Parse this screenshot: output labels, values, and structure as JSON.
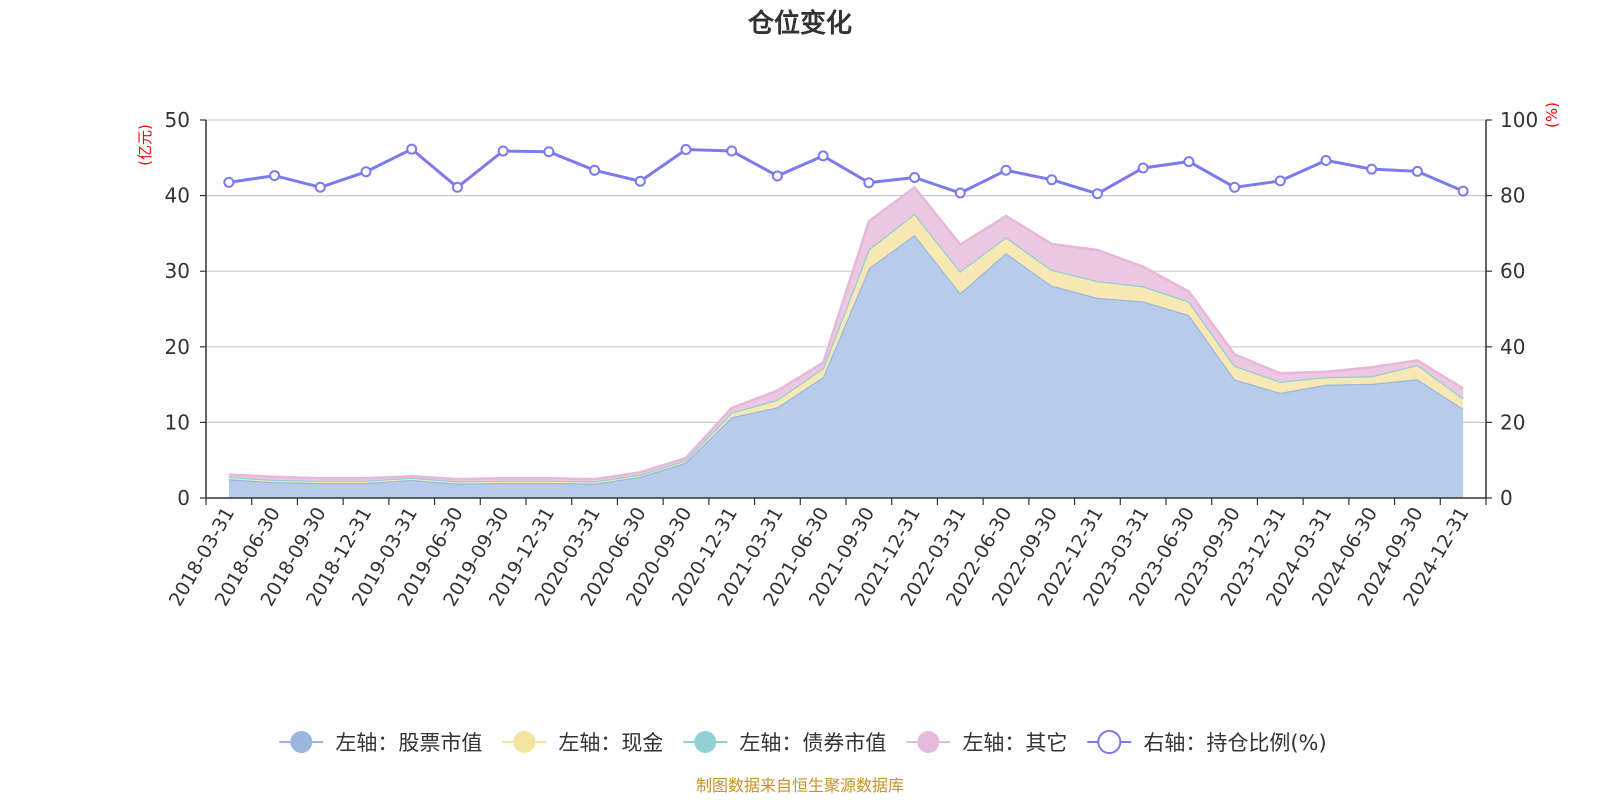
{
  "chart_data": {
    "type": "area",
    "title": "仓位变化",
    "left_unit": "(亿元)",
    "right_unit": "(%)",
    "left_ylim": [
      0,
      50
    ],
    "left_ticks": [
      "0",
      "10",
      "20",
      "30",
      "40",
      "50"
    ],
    "right_ylim": [
      0,
      100
    ],
    "right_ticks": [
      "0",
      "20",
      "40",
      "60",
      "80",
      "100"
    ],
    "grid": true,
    "legend_position": "bottom-center",
    "categories": [
      "2018-03-31",
      "2018-06-30",
      "2018-09-30",
      "2018-12-31",
      "2019-03-31",
      "2019-06-30",
      "2019-09-30",
      "2019-12-31",
      "2020-03-31",
      "2020-06-30",
      "2020-09-30",
      "2020-12-31",
      "2021-03-31",
      "2021-06-30",
      "2021-09-30",
      "2021-12-31",
      "2022-03-31",
      "2022-06-30",
      "2022-09-30",
      "2022-12-31",
      "2023-03-31",
      "2023-06-30",
      "2023-09-30",
      "2023-12-31",
      "2024-03-31",
      "2024-06-30",
      "2024-09-30",
      "2024-12-31"
    ],
    "series": [
      {
        "name": "左轴：股票市值",
        "axis": "left",
        "type": "stacked-area",
        "color": "#9bb7e0",
        "fill": "#b7cceb",
        "values": [
          2.5,
          2.1,
          2.0,
          2.0,
          2.4,
          1.9,
          2.0,
          2.0,
          1.9,
          2.8,
          4.7,
          10.7,
          12.0,
          16.0,
          30.4,
          34.8,
          27.1,
          32.4,
          28.1,
          26.5,
          26.0,
          24.2,
          15.7,
          13.9,
          15.0,
          15.1,
          15.7,
          11.8
        ]
      },
      {
        "name": "左轴：现金",
        "axis": "left",
        "type": "stacked-area",
        "color": "#f5e3a0",
        "fill": "#f8e9b4",
        "values": [
          0.3,
          0.3,
          0.3,
          0.3,
          0.3,
          0.3,
          0.3,
          0.3,
          0.3,
          0.3,
          0.3,
          0.6,
          1.0,
          1.2,
          2.5,
          2.8,
          2.9,
          2.1,
          2.1,
          2.2,
          2.0,
          1.8,
          1.8,
          1.5,
          1.0,
          1.0,
          1.9,
          1.4
        ]
      },
      {
        "name": "左轴：债券市值",
        "axis": "left",
        "type": "stacked-area",
        "color": "#8fd1d4",
        "fill": "#b3e0e2",
        "values": [
          0,
          0,
          0,
          0,
          0,
          0,
          0,
          0,
          0,
          0,
          0,
          0,
          0,
          0,
          0,
          0,
          0,
          0,
          0,
          0,
          0,
          0,
          0,
          0,
          0,
          0,
          0,
          0
        ]
      },
      {
        "name": "左轴：其它",
        "axis": "left",
        "type": "stacked-area",
        "color": "#e6b8da",
        "fill": "#ecc8e2",
        "values": [
          0.3,
          0.4,
          0.3,
          0.3,
          0.2,
          0.3,
          0.3,
          0.3,
          0.3,
          0.3,
          0.3,
          0.6,
          1.2,
          0.7,
          3.7,
          3.5,
          3.5,
          2.8,
          3.4,
          4.1,
          2.6,
          1.3,
          1.5,
          1.1,
          0.7,
          1.2,
          0.6,
          1.3
        ]
      },
      {
        "name": "右轴：持仓比例(%)",
        "axis": "right",
        "type": "line",
        "color": "#7b7bef",
        "values": [
          83.5,
          85.3,
          82.2,
          86.3,
          92.3,
          82.2,
          91.8,
          91.6,
          86.7,
          83.8,
          92.2,
          91.8,
          85.2,
          90.5,
          83.4,
          84.8,
          80.7,
          86.7,
          84.2,
          80.5,
          87.3,
          89.0,
          82.2,
          83.9,
          89.3,
          87.0,
          86.4,
          81.2
        ]
      }
    ]
  },
  "footer": {
    "source": "制图数据来自恒生聚源数据库"
  }
}
